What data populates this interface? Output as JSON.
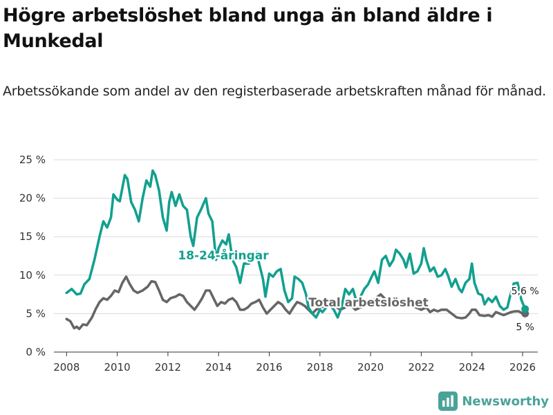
{
  "page": {
    "title": "Högre arbetslöshet bland unga än bland äldre i Munkedal",
    "subtitle": "Arbetssökande som andel av den registerbaserade arbetskraften månad för månad."
  },
  "brand": {
    "name": "Newsworthy",
    "icon": "newsworthy-logo-icon",
    "color": "#4aa398"
  },
  "colors": {
    "youth": "#12a08f",
    "total": "#666666",
    "grid": "#d9d9d9",
    "axis": "#333333"
  },
  "chart_data": {
    "type": "line",
    "title": "Högre arbetslöshet bland unga än bland äldre i Munkedal",
    "xlabel": "",
    "ylabel": "",
    "xlim": [
      2007.5,
      2026.6
    ],
    "ylim": [
      0,
      25
    ],
    "x_ticks": [
      2008,
      2010,
      2012,
      2014,
      2016,
      2018,
      2020,
      2022,
      2024,
      2026
    ],
    "x_tick_labels": [
      "2008",
      "2010",
      "2012",
      "2014",
      "2016",
      "2018",
      "2020",
      "2022",
      "2024",
      "2026"
    ],
    "y_ticks": [
      0,
      5,
      10,
      15,
      20,
      25
    ],
    "y_tick_labels": [
      "0 %",
      "5 %",
      "10 %",
      "15 %",
      "20 %",
      "25 %"
    ],
    "grid": true,
    "series": [
      {
        "name": "18-24-åringar",
        "color": "#12a08f",
        "end_label": "5,6 %",
        "points": [
          [
            2008.0,
            7.7
          ],
          [
            2008.2,
            8.2
          ],
          [
            2008.4,
            7.5
          ],
          [
            2008.55,
            7.6
          ],
          [
            2008.7,
            8.8
          ],
          [
            2008.9,
            9.5
          ],
          [
            2009.1,
            12.0
          ],
          [
            2009.3,
            15.0
          ],
          [
            2009.45,
            17.0
          ],
          [
            2009.6,
            16.2
          ],
          [
            2009.75,
            17.5
          ],
          [
            2009.85,
            20.5
          ],
          [
            2010.0,
            19.8
          ],
          [
            2010.1,
            19.6
          ],
          [
            2010.3,
            23.0
          ],
          [
            2010.4,
            22.5
          ],
          [
            2010.55,
            19.5
          ],
          [
            2010.7,
            18.5
          ],
          [
            2010.85,
            17.0
          ],
          [
            2011.0,
            20.0
          ],
          [
            2011.15,
            22.3
          ],
          [
            2011.3,
            21.5
          ],
          [
            2011.4,
            23.6
          ],
          [
            2011.5,
            23.0
          ],
          [
            2011.65,
            21.0
          ],
          [
            2011.8,
            17.5
          ],
          [
            2011.95,
            15.8
          ],
          [
            2012.05,
            19.5
          ],
          [
            2012.15,
            20.8
          ],
          [
            2012.3,
            19.0
          ],
          [
            2012.45,
            20.5
          ],
          [
            2012.6,
            19.0
          ],
          [
            2012.75,
            18.5
          ],
          [
            2012.9,
            15.0
          ],
          [
            2013.0,
            13.8
          ],
          [
            2013.15,
            17.5
          ],
          [
            2013.3,
            18.5
          ],
          [
            2013.5,
            20.0
          ],
          [
            2013.6,
            18.0
          ],
          [
            2013.75,
            17.0
          ],
          [
            2013.9,
            12.0
          ],
          [
            2014.0,
            13.5
          ],
          [
            2014.15,
            14.5
          ],
          [
            2014.3,
            14.0
          ],
          [
            2014.4,
            15.3
          ],
          [
            2014.55,
            12.0
          ],
          [
            2014.7,
            11.0
          ],
          [
            2014.85,
            9.0
          ],
          [
            2015.0,
            11.5
          ],
          [
            2015.2,
            11.5
          ],
          [
            2015.35,
            12.5
          ],
          [
            2015.5,
            13.0
          ],
          [
            2015.6,
            11.5
          ],
          [
            2015.75,
            9.5
          ],
          [
            2015.85,
            7.2
          ],
          [
            2016.0,
            10.2
          ],
          [
            2016.15,
            9.8
          ],
          [
            2016.3,
            10.5
          ],
          [
            2016.45,
            10.8
          ],
          [
            2016.6,
            8.0
          ],
          [
            2016.75,
            6.5
          ],
          [
            2016.9,
            7.0
          ],
          [
            2017.0,
            9.8
          ],
          [
            2017.15,
            9.5
          ],
          [
            2017.3,
            9.0
          ],
          [
            2017.45,
            7.5
          ],
          [
            2017.55,
            5.8
          ],
          [
            2017.7,
            5.0
          ],
          [
            2017.85,
            4.5
          ],
          [
            2018.0,
            5.5
          ],
          [
            2018.1,
            5.2
          ],
          [
            2018.2,
            5.6
          ],
          [
            2018.35,
            6.2
          ],
          [
            2018.55,
            5.5
          ],
          [
            2018.7,
            4.5
          ],
          [
            2018.85,
            5.8
          ],
          [
            2019.0,
            8.2
          ],
          [
            2019.15,
            7.5
          ],
          [
            2019.3,
            8.2
          ],
          [
            2019.45,
            6.5
          ],
          [
            2019.6,
            7.2
          ],
          [
            2019.75,
            8.2
          ],
          [
            2019.9,
            8.8
          ],
          [
            2020.0,
            9.5
          ],
          [
            2020.15,
            10.5
          ],
          [
            2020.3,
            9.0
          ],
          [
            2020.45,
            12.0
          ],
          [
            2020.6,
            12.5
          ],
          [
            2020.75,
            11.2
          ],
          [
            2020.9,
            12.0
          ],
          [
            2021.0,
            13.3
          ],
          [
            2021.15,
            12.8
          ],
          [
            2021.3,
            12.0
          ],
          [
            2021.4,
            11.0
          ],
          [
            2021.55,
            12.8
          ],
          [
            2021.7,
            10.2
          ],
          [
            2021.85,
            10.5
          ],
          [
            2022.0,
            11.5
          ],
          [
            2022.1,
            13.5
          ],
          [
            2022.2,
            12.0
          ],
          [
            2022.35,
            10.5
          ],
          [
            2022.5,
            11.0
          ],
          [
            2022.65,
            9.8
          ],
          [
            2022.8,
            10.0
          ],
          [
            2022.95,
            10.8
          ],
          [
            2023.05,
            10.0
          ],
          [
            2023.2,
            8.5
          ],
          [
            2023.35,
            9.5
          ],
          [
            2023.5,
            8.2
          ],
          [
            2023.6,
            7.8
          ],
          [
            2023.75,
            9.0
          ],
          [
            2023.9,
            9.5
          ],
          [
            2024.0,
            11.5
          ],
          [
            2024.1,
            9.0
          ],
          [
            2024.25,
            7.6
          ],
          [
            2024.4,
            7.4
          ],
          [
            2024.5,
            6.2
          ],
          [
            2024.65,
            7.0
          ],
          [
            2024.8,
            6.5
          ],
          [
            2024.95,
            7.2
          ],
          [
            2025.1,
            6.0
          ],
          [
            2025.25,
            5.5
          ],
          [
            2025.4,
            5.8
          ],
          [
            2025.5,
            7.2
          ],
          [
            2025.65,
            8.9
          ],
          [
            2025.8,
            9.0
          ],
          [
            2025.95,
            6.8
          ],
          [
            2026.1,
            5.6
          ]
        ]
      },
      {
        "name": "Total arbetslöshet",
        "color": "#666666",
        "end_label": "5 %",
        "points": [
          [
            2008.0,
            4.3
          ],
          [
            2008.15,
            4.0
          ],
          [
            2008.3,
            3.1
          ],
          [
            2008.4,
            3.3
          ],
          [
            2008.5,
            3.0
          ],
          [
            2008.65,
            3.6
          ],
          [
            2008.8,
            3.5
          ],
          [
            2009.0,
            4.5
          ],
          [
            2009.15,
            5.6
          ],
          [
            2009.3,
            6.5
          ],
          [
            2009.45,
            7.0
          ],
          [
            2009.6,
            6.8
          ],
          [
            2009.75,
            7.3
          ],
          [
            2009.9,
            8.0
          ],
          [
            2010.05,
            7.8
          ],
          [
            2010.2,
            9.0
          ],
          [
            2010.35,
            9.8
          ],
          [
            2010.5,
            8.8
          ],
          [
            2010.65,
            8.0
          ],
          [
            2010.8,
            7.7
          ],
          [
            2011.0,
            8.0
          ],
          [
            2011.2,
            8.5
          ],
          [
            2011.35,
            9.2
          ],
          [
            2011.5,
            9.1
          ],
          [
            2011.65,
            8.0
          ],
          [
            2011.8,
            6.8
          ],
          [
            2011.95,
            6.5
          ],
          [
            2012.1,
            7.0
          ],
          [
            2012.3,
            7.2
          ],
          [
            2012.45,
            7.5
          ],
          [
            2012.6,
            7.3
          ],
          [
            2012.75,
            6.5
          ],
          [
            2012.9,
            6.0
          ],
          [
            2013.05,
            5.5
          ],
          [
            2013.2,
            6.2
          ],
          [
            2013.35,
            7.0
          ],
          [
            2013.5,
            8.0
          ],
          [
            2013.65,
            8.0
          ],
          [
            2013.8,
            7.0
          ],
          [
            2013.95,
            6.0
          ],
          [
            2014.1,
            6.5
          ],
          [
            2014.25,
            6.3
          ],
          [
            2014.4,
            6.8
          ],
          [
            2014.55,
            7.0
          ],
          [
            2014.7,
            6.5
          ],
          [
            2014.85,
            5.5
          ],
          [
            2015.0,
            5.5
          ],
          [
            2015.15,
            5.8
          ],
          [
            2015.3,
            6.3
          ],
          [
            2015.45,
            6.5
          ],
          [
            2015.6,
            6.8
          ],
          [
            2015.75,
            5.8
          ],
          [
            2015.9,
            5.0
          ],
          [
            2016.05,
            5.5
          ],
          [
            2016.2,
            6.0
          ],
          [
            2016.35,
            6.5
          ],
          [
            2016.5,
            6.2
          ],
          [
            2016.65,
            5.5
          ],
          [
            2016.8,
            5.0
          ],
          [
            2016.95,
            5.8
          ],
          [
            2017.1,
            6.5
          ],
          [
            2017.25,
            6.3
          ],
          [
            2017.4,
            6.0
          ],
          [
            2017.55,
            5.5
          ],
          [
            2017.7,
            5.0
          ],
          [
            2017.85,
            5.5
          ],
          [
            2018.0,
            5.8
          ],
          [
            2018.2,
            6.0
          ],
          [
            2018.4,
            6.2
          ],
          [
            2018.6,
            6.0
          ],
          [
            2018.8,
            5.5
          ],
          [
            2019.0,
            5.8
          ],
          [
            2019.2,
            6.2
          ],
          [
            2019.4,
            5.5
          ],
          [
            2019.6,
            5.8
          ],
          [
            2019.8,
            6.0
          ],
          [
            2020.0,
            6.5
          ],
          [
            2020.2,
            7.0
          ],
          [
            2020.4,
            7.5
          ],
          [
            2020.6,
            6.8
          ],
          [
            2020.8,
            6.5
          ],
          [
            2021.0,
            6.5
          ],
          [
            2021.2,
            6.5
          ],
          [
            2021.4,
            6.2
          ],
          [
            2021.6,
            6.0
          ],
          [
            2021.8,
            5.8
          ],
          [
            2022.0,
            5.5
          ],
          [
            2022.2,
            5.8
          ],
          [
            2022.35,
            5.2
          ],
          [
            2022.5,
            5.5
          ],
          [
            2022.65,
            5.3
          ],
          [
            2022.8,
            5.5
          ],
          [
            2023.0,
            5.5
          ],
          [
            2023.2,
            5.0
          ],
          [
            2023.4,
            4.5
          ],
          [
            2023.6,
            4.4
          ],
          [
            2023.75,
            4.5
          ],
          [
            2023.9,
            5.0
          ],
          [
            2024.0,
            5.5
          ],
          [
            2024.15,
            5.5
          ],
          [
            2024.3,
            4.8
          ],
          [
            2024.5,
            4.7
          ],
          [
            2024.65,
            4.8
          ],
          [
            2024.8,
            4.6
          ],
          [
            2024.95,
            5.2
          ],
          [
            2025.1,
            5.0
          ],
          [
            2025.25,
            4.8
          ],
          [
            2025.4,
            5.0
          ],
          [
            2025.55,
            5.2
          ],
          [
            2025.7,
            5.3
          ],
          [
            2025.85,
            5.3
          ],
          [
            2026.0,
            5.0
          ],
          [
            2026.1,
            5.0
          ]
        ]
      }
    ]
  }
}
